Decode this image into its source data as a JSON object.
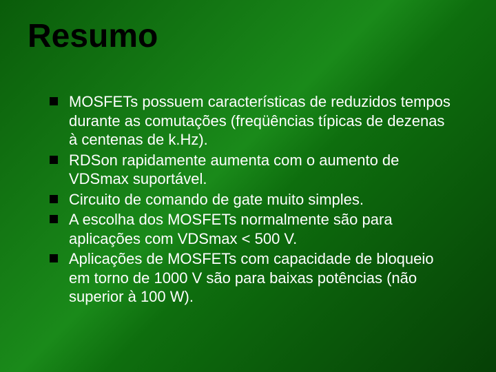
{
  "slide": {
    "title": "Resumo",
    "title_color": "#000000",
    "title_fontsize": 48,
    "background_gradient": [
      "#0a5c0a",
      "#1a8a1a",
      "#0e6e0e",
      "#064006"
    ],
    "bullet_marker_color": "#000000",
    "bullet_marker_shape": "square",
    "text_color": "#ffffff",
    "text_fontsize": 22,
    "items": [
      "MOSFETs possuem características de reduzidos tempos durante as comutações (freqüências típicas de dezenas à centenas de k.Hz).",
      "RDSon rapidamente aumenta com o aumento de VDSmax suportável.",
      "Circuito de comando de gate muito simples.",
      "A escolha dos MOSFETs normalmente são para aplicações com VDSmax < 500 V.",
      "Aplicações de MOSFETs com capacidade de bloqueio em torno de 1000 V são para baixas potências (não superior à 100 W)."
    ]
  }
}
